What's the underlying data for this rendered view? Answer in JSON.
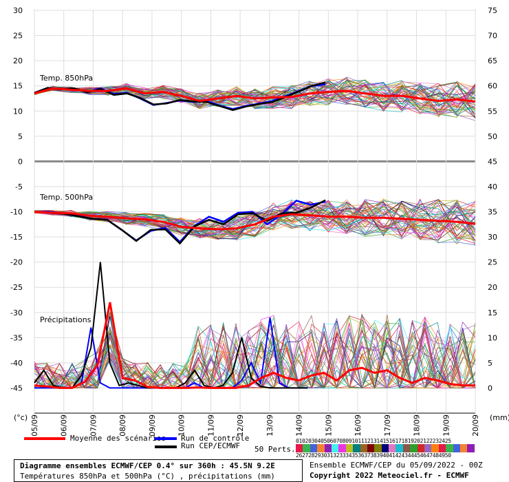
{
  "chart_data": {
    "type": "line",
    "x_ticks": [
      "05/09",
      "06/09",
      "07/09",
      "08/09",
      "09/09",
      "10/09",
      "11/09",
      "12/09",
      "13/09",
      "14/09",
      "15/09",
      "16/09",
      "17/09",
      "18/09",
      "19/09",
      "20/09"
    ],
    "left_axis": {
      "unit": "(°c)",
      "ylim": [
        -50,
        30
      ],
      "ticks": [
        30,
        25,
        20,
        15,
        10,
        5,
        0,
        -5,
        -10,
        -15,
        -20,
        -25,
        -30,
        -35,
        -40,
        -45
      ]
    },
    "right_axis": {
      "unit": "(mm)",
      "ylim": [
        -5,
        75
      ],
      "ticks": [
        75,
        70,
        65,
        60,
        55,
        50,
        45,
        40,
        35,
        30,
        25,
        20,
        15,
        10,
        5,
        0
      ]
    },
    "panel_labels": [
      "Temp. 850hPa",
      "Temp. 500hPa",
      "Précipitations"
    ],
    "series_850": {
      "mean": [
        13.5,
        14.5,
        14.2,
        14,
        14,
        14.5,
        13.5,
        13.8,
        13,
        12,
        12.5,
        13,
        12.5,
        12.7,
        12.8,
        13.5,
        13.8,
        14,
        13.5,
        13,
        13,
        12.5,
        12,
        12.3,
        11.9
      ],
      "control": [
        13.6,
        14.6,
        14.4,
        14.3,
        13.8,
        14.5,
        13.4,
        13.6,
        12.5,
        11.2,
        11.6,
        12.1,
        11.8,
        12,
        11.1,
        10.4,
        11,
        11.5,
        12,
        13,
        14,
        15,
        15.3
      ],
      "oper": [
        13.6,
        14.6,
        14.3,
        14.5,
        13.7,
        14.4,
        13.2,
        13.5,
        12.6,
        11.3,
        11.5,
        12.2,
        11.9,
        11.8,
        11,
        10.2,
        10.9,
        11.4,
        11.8,
        12.8,
        13.9,
        15,
        15.7
      ]
    },
    "series_500": {
      "mean": [
        -10,
        -10.2,
        -10.3,
        -10.8,
        -11,
        -11.3,
        -11.5,
        -12,
        -13,
        -13.3,
        -13.5,
        -13.3,
        -12.5,
        -11,
        -10.5,
        -10.7,
        -11,
        -11,
        -11.2,
        -11.2,
        -11.4,
        -11.6,
        -11.8,
        -12,
        -12.4
      ],
      "control": [
        -10,
        -10,
        -10.3,
        -10.8,
        -11.4,
        -11.6,
        -13.6,
        -15.7,
        -13.8,
        -13.2,
        -16,
        -12.8,
        -11,
        -12,
        -10.2,
        -10,
        -12.5,
        -10.5,
        -7.8,
        -8.6,
        -8
      ],
      "oper": [
        -10,
        -10.2,
        -10.4,
        -10.9,
        -11.4,
        -11.6,
        -13.6,
        -15.8,
        -13.6,
        -13.5,
        -16.3,
        -12.9,
        -11.6,
        -12.5,
        -10.5,
        -10.3,
        -11.8,
        -10.3,
        -10.2,
        -9.2,
        -7.7
      ]
    },
    "precip_mm": {
      "mean": [
        0.5,
        0.3,
        0,
        0,
        1.2,
        4.5,
        17,
        2,
        1.5,
        0.2,
        0,
        0,
        0,
        0.1,
        0,
        0,
        0,
        0.5,
        2,
        3,
        2,
        1.5,
        2.5,
        3,
        1.5,
        3.5,
        4,
        3,
        3.5,
        2,
        1,
        2,
        1.5,
        0.8,
        0.5,
        0.5
      ],
      "control": [
        0,
        0,
        0,
        0,
        0,
        1,
        12,
        1,
        0,
        0,
        0,
        0,
        0,
        0,
        0,
        0,
        0,
        1,
        0,
        0,
        0,
        0,
        1.5,
        5,
        1,
        14,
        1,
        0,
        0,
        0
      ],
      "oper": [
        1,
        3.5,
        0.5,
        0,
        0,
        2.5,
        8,
        25,
        5,
        0.5,
        1,
        0.5,
        0,
        0,
        0,
        0,
        1,
        3.5,
        0.5,
        0,
        0.5,
        3,
        10,
        2,
        0.3,
        0,
        0,
        0,
        0,
        0
      ]
    }
  },
  "legend": {
    "mean_label": "Moyenne des scénarios",
    "control_label": "Run de contrôle",
    "oper_label": "Run CEP/ECMWF",
    "perts_label": "50 Perts.",
    "perts_row1": "01020304050607080910111213141516171819202122232425",
    "perts_row2": "26272829303132333435363738394041424344454647484950",
    "colors": {
      "mean": "#ff0000",
      "control": "#0000ff",
      "oper": "#000000"
    }
  },
  "footer": {
    "title": "Diagramme ensembles ECMWF/CEP 0.4° sur 360h : 45.5N 9.2E",
    "subtitle": "Températures 850hPa et 500hPa (°C) , précipitations (mm)",
    "run_info": "Ensemble ECMWF/CEP du 05/09/2022 - 00Z",
    "copyright": "Copyright 2022 Meteociel.fr - ECMWF"
  }
}
